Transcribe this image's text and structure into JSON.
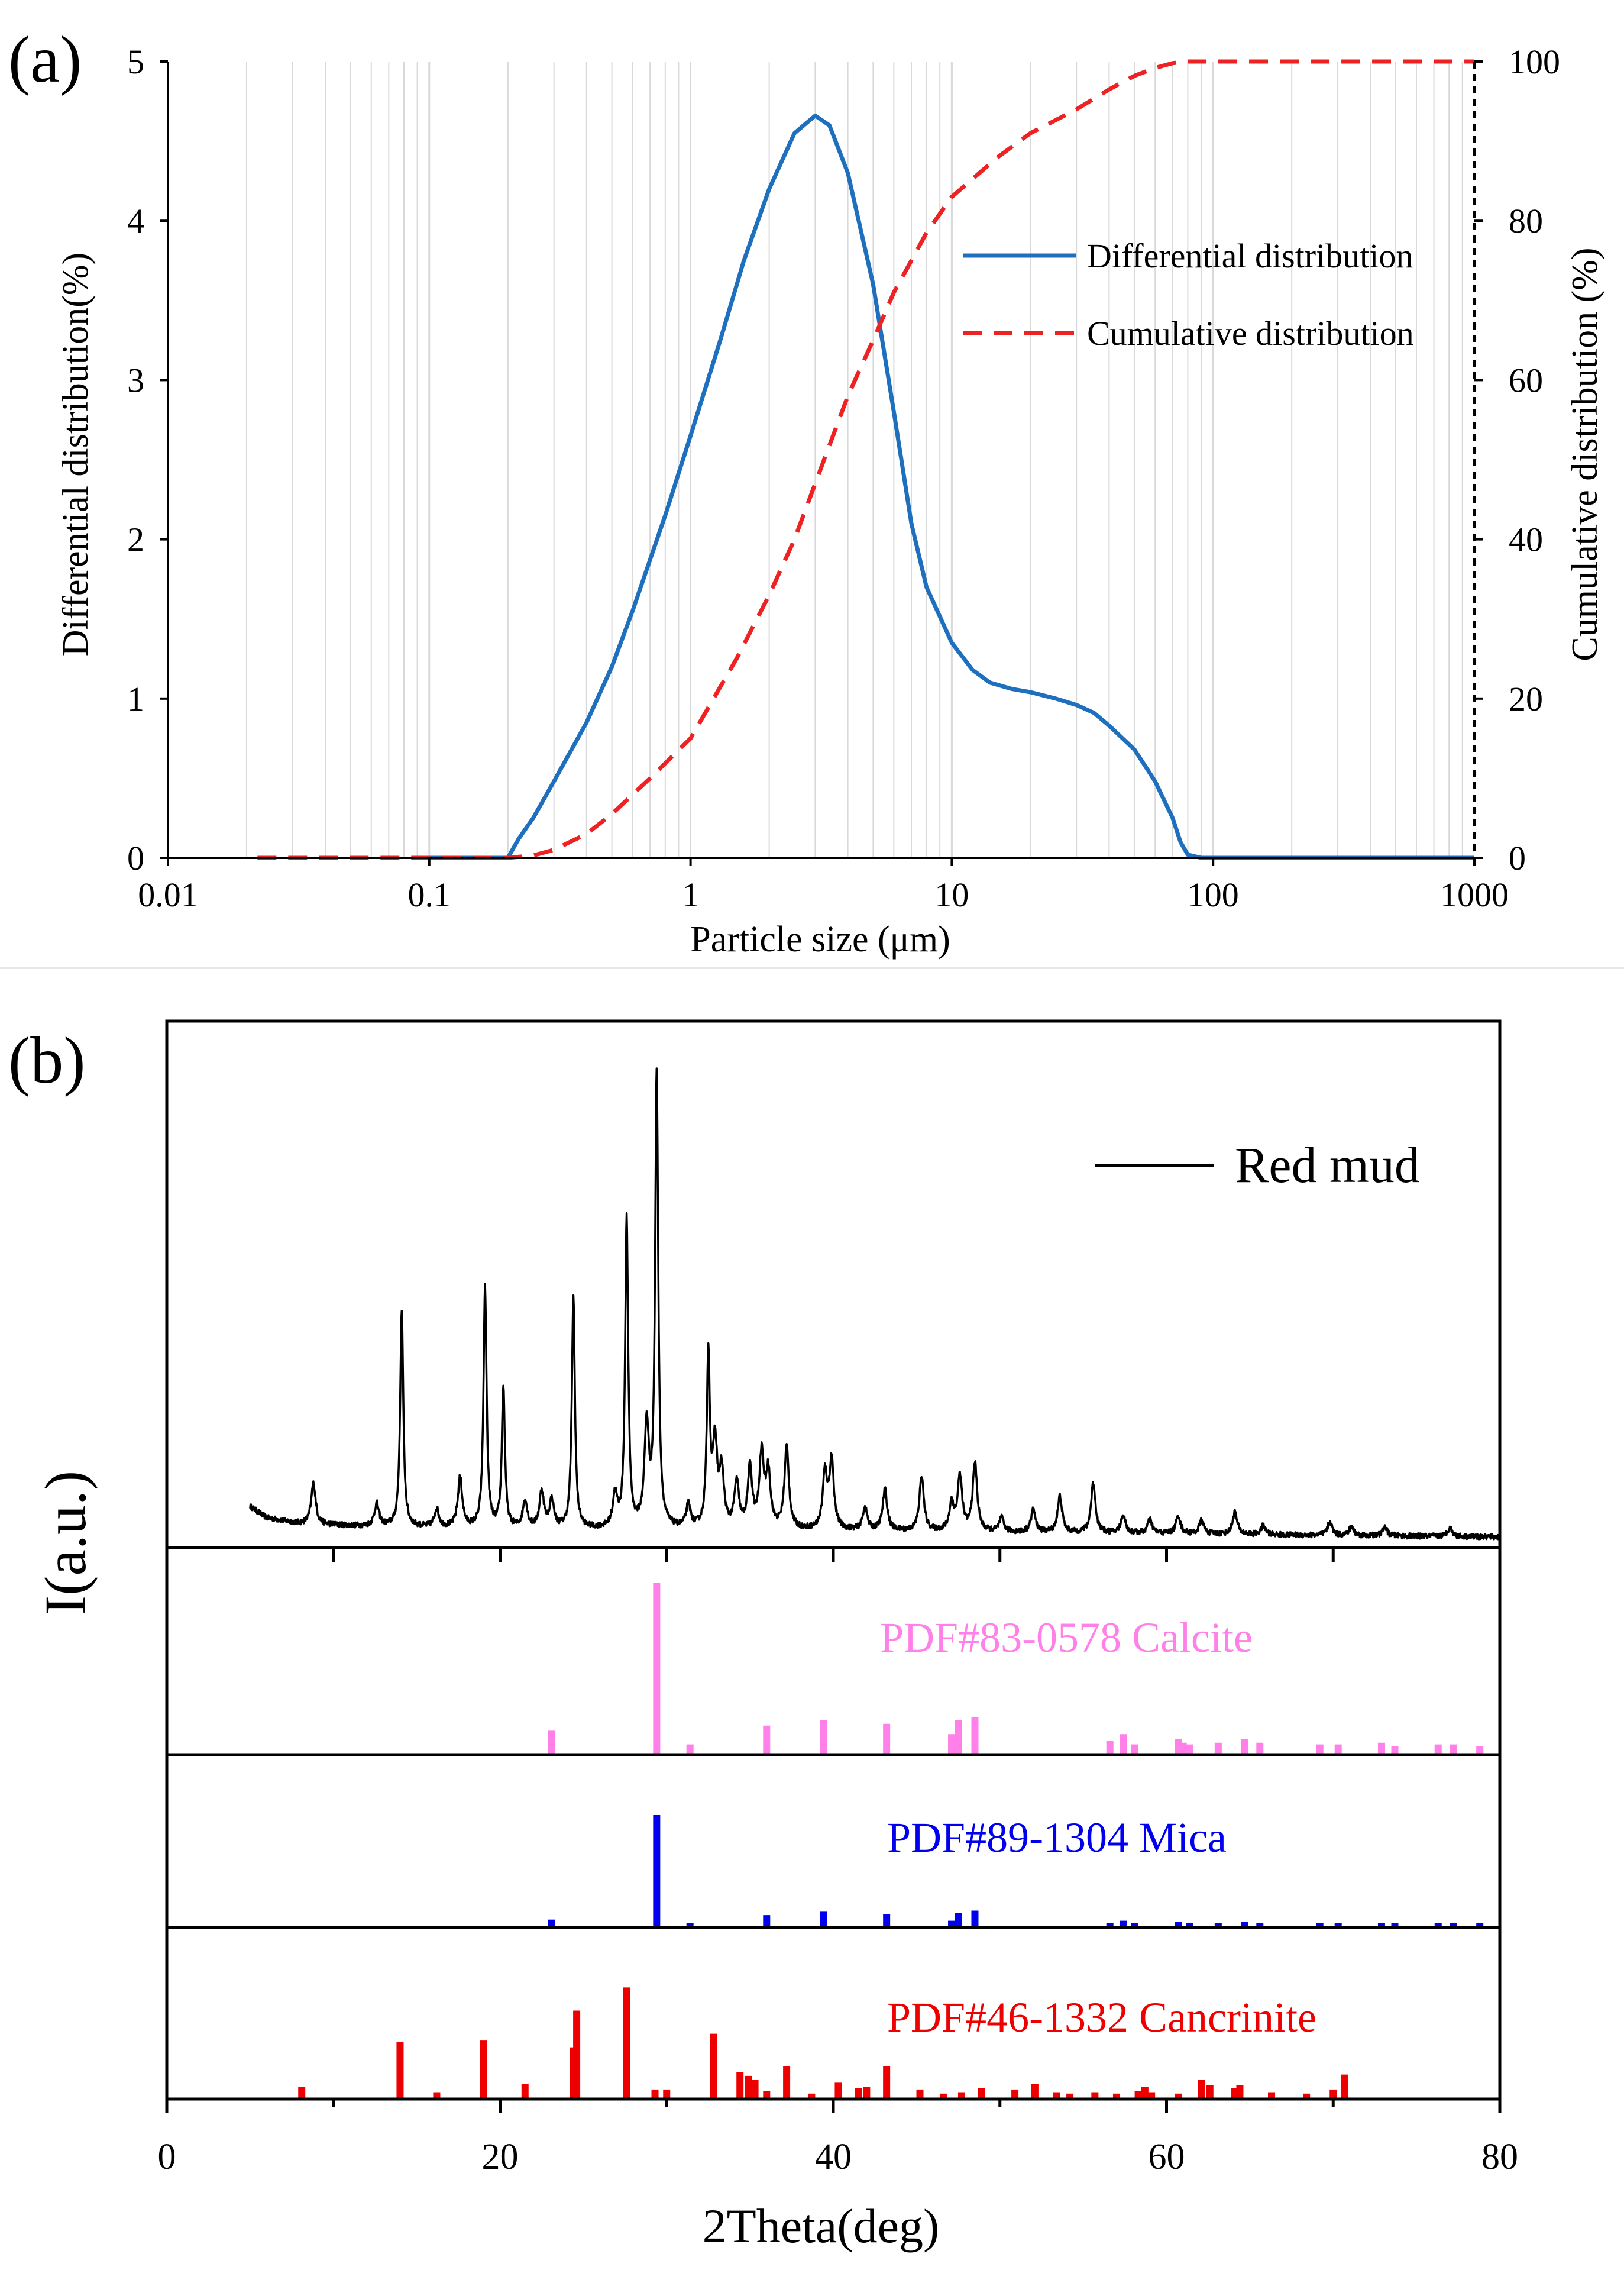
{
  "chart_data": [
    {
      "panel": "(a)",
      "type": "line",
      "xscale": "log",
      "xlabel": "Particle size (μm)",
      "ylabel": "Differential distribution(%)",
      "y2label": "Cumulative distribution (%)",
      "xlim": [
        0.01,
        1000
      ],
      "ylim": [
        0,
        5
      ],
      "y2lim": [
        0,
        100
      ],
      "xticks": [
        0.01,
        0.1,
        1,
        10,
        100,
        1000
      ],
      "xtick_labels": [
        "0.01",
        "0.1",
        "1",
        "10",
        "100",
        "1000"
      ],
      "yticks": [
        0,
        1,
        2,
        3,
        4,
        5
      ],
      "ytick_labels": [
        "0",
        "1",
        "2",
        "3",
        "4",
        "5"
      ],
      "y2ticks": [
        0,
        20,
        40,
        60,
        80,
        100
      ],
      "y2tick_labels": [
        "0",
        "20",
        "40",
        "60",
        "80",
        "100"
      ],
      "grid": "vertical-log",
      "legend_position": "right-middle",
      "series": [
        {
          "name": "Differential distribution",
          "color": "#1f6fbf",
          "style": "solid",
          "axis": "left",
          "points": [
            [
              0.1,
              0
            ],
            [
              0.2,
              0
            ],
            [
              0.22,
              0.12
            ],
            [
              0.25,
              0.25
            ],
            [
              0.3,
              0.48
            ],
            [
              0.4,
              0.85
            ],
            [
              0.5,
              1.2
            ],
            [
              0.6,
              1.55
            ],
            [
              0.8,
              2.15
            ],
            [
              1,
              2.65
            ],
            [
              1.3,
              3.25
            ],
            [
              1.6,
              3.75
            ],
            [
              2,
              4.2
            ],
            [
              2.5,
              4.55
            ],
            [
              3,
              4.66
            ],
            [
              3.4,
              4.6
            ],
            [
              4,
              4.3
            ],
            [
              5,
              3.6
            ],
            [
              6,
              2.8
            ],
            [
              7,
              2.1
            ],
            [
              8,
              1.7
            ],
            [
              10,
              1.35
            ],
            [
              12,
              1.18
            ],
            [
              14,
              1.1
            ],
            [
              17,
              1.06
            ],
            [
              20,
              1.04
            ],
            [
              25,
              1.0
            ],
            [
              30,
              0.96
            ],
            [
              35,
              0.91
            ],
            [
              40,
              0.83
            ],
            [
              50,
              0.68
            ],
            [
              60,
              0.48
            ],
            [
              70,
              0.25
            ],
            [
              75,
              0.1
            ],
            [
              80,
              0.02
            ],
            [
              90,
              0
            ],
            [
              1000,
              0
            ]
          ]
        },
        {
          "name": "Cumulative distribution",
          "color": "#ee2222",
          "style": "dashed",
          "axis": "right",
          "points": [
            [
              0.022,
              0
            ],
            [
              0.2,
              0
            ],
            [
              0.25,
              0.3
            ],
            [
              0.3,
              1
            ],
            [
              0.4,
              3
            ],
            [
              0.5,
              5.5
            ],
            [
              0.7,
              10
            ],
            [
              1,
              15
            ],
            [
              1.5,
              25
            ],
            [
              2,
              33
            ],
            [
              2.5,
              40
            ],
            [
              3,
              47
            ],
            [
              4,
              58
            ],
            [
              5,
              65
            ],
            [
              6,
              71
            ],
            [
              7,
              75
            ],
            [
              8,
              78.5
            ],
            [
              10,
              83
            ],
            [
              15,
              88
            ],
            [
              20,
              91
            ],
            [
              30,
              94
            ],
            [
              40,
              96.5
            ],
            [
              50,
              98.2
            ],
            [
              60,
              99.2
            ],
            [
              70,
              99.8
            ],
            [
              80,
              100
            ],
            [
              1000,
              100
            ]
          ]
        }
      ]
    },
    {
      "panel": "(b)",
      "type": "line",
      "xlabel": "2Theta(deg)",
      "ylabel": "I(a.u.)",
      "xlim": [
        0,
        80
      ],
      "xticks": [
        0,
        20,
        40,
        60,
        80
      ],
      "xtick_labels": [
        "0",
        "20",
        "40",
        "60",
        "80"
      ],
      "legend": "Red mud",
      "legend_position": "top-right",
      "pattern": {
        "name": "Red mud",
        "color": "#000000",
        "x_start": 5,
        "x_end": 80,
        "background": [
          [
            5,
            0.07
          ],
          [
            6,
            0.045
          ],
          [
            8,
            0.032
          ],
          [
            12,
            0.026
          ],
          [
            20,
            0.02
          ],
          [
            30,
            0.018
          ],
          [
            40,
            0.017
          ],
          [
            50,
            0.013
          ],
          [
            60,
            0.01
          ],
          [
            70,
            0.006
          ],
          [
            80,
            0.003
          ]
        ],
        "peaks": [
          [
            8.8,
            0.09
          ],
          [
            12.6,
            0.05
          ],
          [
            14.1,
            0.48
          ],
          [
            16.2,
            0.04
          ],
          [
            17.6,
            0.11
          ],
          [
            19.1,
            0.53
          ],
          [
            20.2,
            0.31
          ],
          [
            21.5,
            0.06
          ],
          [
            22.5,
            0.08
          ],
          [
            23.1,
            0.06
          ],
          [
            24.4,
            0.51
          ],
          [
            26.9,
            0.07
          ],
          [
            27.6,
            0.68
          ],
          [
            28.8,
            0.22
          ],
          [
            29.4,
            1.0
          ],
          [
            31.3,
            0.05
          ],
          [
            32.5,
            0.38
          ],
          [
            32.9,
            0.18
          ],
          [
            33.3,
            0.12
          ],
          [
            34.2,
            0.1
          ],
          [
            35.0,
            0.13
          ],
          [
            35.7,
            0.16
          ],
          [
            36.1,
            0.12
          ],
          [
            37.2,
            0.18
          ],
          [
            39.5,
            0.12
          ],
          [
            39.9,
            0.15
          ],
          [
            41.9,
            0.05
          ],
          [
            43.1,
            0.09
          ],
          [
            45.3,
            0.12
          ],
          [
            47.1,
            0.06
          ],
          [
            47.6,
            0.12
          ],
          [
            48.5,
            0.15
          ],
          [
            50.1,
            0.03
          ],
          [
            52.0,
            0.05
          ],
          [
            53.6,
            0.08
          ],
          [
            55.6,
            0.11
          ],
          [
            57.4,
            0.04
          ],
          [
            59.0,
            0.03
          ],
          [
            60.7,
            0.04
          ],
          [
            62.1,
            0.03
          ],
          [
            64.1,
            0.05
          ],
          [
            65.8,
            0.02
          ],
          [
            69.8,
            0.03
          ],
          [
            71.1,
            0.02
          ],
          [
            73.1,
            0.02
          ],
          [
            77.0,
            0.02
          ]
        ]
      },
      "references": [
        {
          "label": "PDF#83-0578 Calcite",
          "color": "#ff80e8",
          "lines": [
            [
              23.1,
              0.14
            ],
            [
              29.4,
              1.0
            ],
            [
              31.4,
              0.06
            ],
            [
              36.0,
              0.17
            ],
            [
              39.4,
              0.2
            ],
            [
              43.2,
              0.18
            ],
            [
              47.1,
              0.12
            ],
            [
              47.5,
              0.2
            ],
            [
              48.5,
              0.22
            ],
            [
              56.6,
              0.08
            ],
            [
              57.4,
              0.12
            ],
            [
              58.1,
              0.06
            ],
            [
              60.7,
              0.09
            ],
            [
              61.0,
              0.07
            ],
            [
              61.4,
              0.06
            ],
            [
              63.1,
              0.07
            ],
            [
              64.7,
              0.09
            ],
            [
              65.6,
              0.07
            ],
            [
              69.2,
              0.06
            ],
            [
              70.3,
              0.06
            ],
            [
              72.9,
              0.07
            ],
            [
              73.7,
              0.05
            ],
            [
              76.3,
              0.06
            ],
            [
              77.2,
              0.06
            ],
            [
              78.8,
              0.05
            ]
          ]
        },
        {
          "label": "PDF#89-1304 Mica",
          "color": "#0000ee",
          "lines": [
            [
              23.1,
              0.07
            ],
            [
              29.4,
              1.0
            ],
            [
              31.4,
              0.03
            ],
            [
              36.0,
              0.11
            ],
            [
              39.4,
              0.14
            ],
            [
              43.2,
              0.12
            ],
            [
              47.1,
              0.06
            ],
            [
              47.5,
              0.13
            ],
            [
              48.5,
              0.15
            ],
            [
              56.6,
              0.03
            ],
            [
              57.4,
              0.06
            ],
            [
              58.1,
              0.03
            ],
            [
              60.7,
              0.05
            ],
            [
              61.4,
              0.03
            ],
            [
              63.1,
              0.03
            ],
            [
              64.7,
              0.05
            ],
            [
              65.6,
              0.04
            ],
            [
              69.2,
              0.03
            ],
            [
              70.3,
              0.03
            ],
            [
              72.9,
              0.03
            ],
            [
              73.7,
              0.03
            ],
            [
              76.3,
              0.03
            ],
            [
              77.2,
              0.03
            ],
            [
              78.8,
              0.03
            ]
          ]
        },
        {
          "label": "PDF#46-1332 Cancrinite",
          "color": "#ee0000",
          "lines": [
            [
              8.1,
              0.09
            ],
            [
              14.0,
              0.42
            ],
            [
              16.2,
              0.05
            ],
            [
              19.0,
              0.43
            ],
            [
              21.5,
              0.11
            ],
            [
              24.4,
              0.38
            ],
            [
              24.6,
              0.65
            ],
            [
              27.6,
              0.82
            ],
            [
              29.3,
              0.07
            ],
            [
              30.0,
              0.07
            ],
            [
              32.8,
              0.48
            ],
            [
              34.4,
              0.2
            ],
            [
              34.9,
              0.17
            ],
            [
              35.3,
              0.14
            ],
            [
              36.0,
              0.06
            ],
            [
              37.2,
              0.24
            ],
            [
              38.7,
              0.04
            ],
            [
              40.3,
              0.12
            ],
            [
              41.5,
              0.08
            ],
            [
              42.0,
              0.09
            ],
            [
              43.2,
              0.24
            ],
            [
              45.2,
              0.07
            ],
            [
              46.6,
              0.04
            ],
            [
              47.7,
              0.05
            ],
            [
              48.9,
              0.08
            ],
            [
              50.9,
              0.07
            ],
            [
              52.1,
              0.11
            ],
            [
              53.4,
              0.05
            ],
            [
              54.2,
              0.04
            ],
            [
              55.7,
              0.05
            ],
            [
              57.0,
              0.04
            ],
            [
              58.3,
              0.06
            ],
            [
              58.7,
              0.09
            ],
            [
              59.1,
              0.05
            ],
            [
              60.7,
              0.04
            ],
            [
              62.1,
              0.14
            ],
            [
              62.6,
              0.1
            ],
            [
              64.1,
              0.08
            ],
            [
              64.4,
              0.1
            ],
            [
              66.3,
              0.05
            ],
            [
              68.4,
              0.04
            ],
            [
              70.0,
              0.07
            ],
            [
              70.7,
              0.18
            ]
          ]
        }
      ]
    }
  ],
  "figure": {
    "panel_a_label": "(a)",
    "panel_b_label": "(b)",
    "axes_color": "#000000",
    "grid_color": "#d9d9d9",
    "separator_color": "#e6e6e6"
  }
}
